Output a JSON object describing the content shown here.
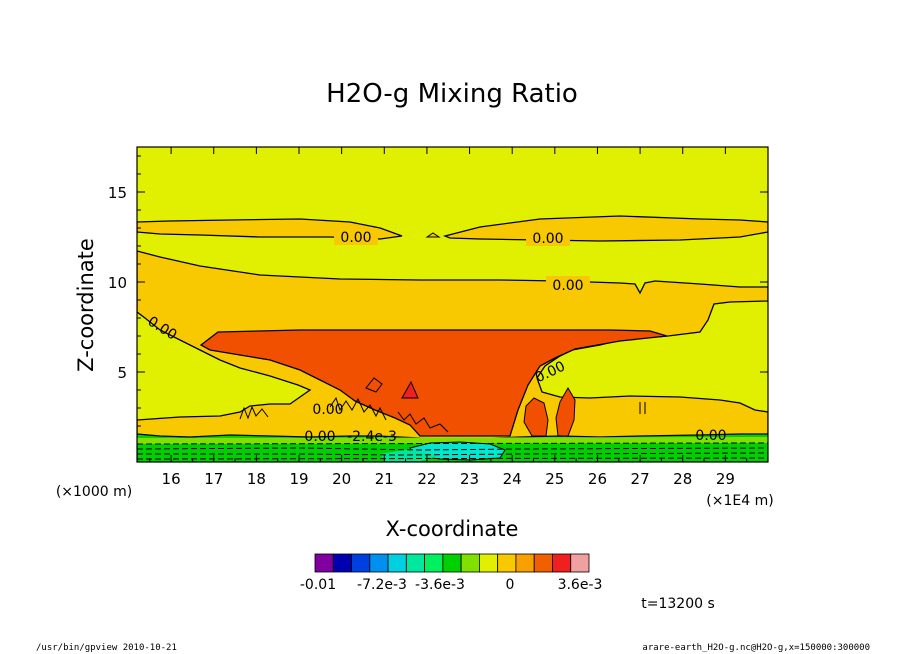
{
  "chart_data": {
    "type": "heatmap",
    "title": "H2O-g Mixing Ratio",
    "xlabel": "X-coordinate",
    "ylabel": "Z-coordinate",
    "x_unit_left": "(×1000 m)",
    "x_unit_right": "(×1E4 m)",
    "xlim": [
      15.2,
      30.0
    ],
    "ylim": [
      0,
      17.5
    ],
    "x_ticks": [
      16,
      17,
      18,
      19,
      20,
      21,
      22,
      23,
      24,
      25,
      26,
      27,
      28,
      29
    ],
    "y_ticks": [
      5,
      10,
      15
    ],
    "contour_label": "0.00",
    "contour_label_low": "-2.4e-3",
    "time_label": "t=13200 s",
    "colorbar": {
      "colors": [
        "#8000a0",
        "#0000b0",
        "#0040e0",
        "#0090f0",
        "#00d0e0",
        "#00e8a0",
        "#00f060",
        "#00d000",
        "#80e000",
        "#e0f000",
        "#f8c800",
        "#f8a000",
        "#f06000",
        "#f02020",
        "#f0a0a0"
      ],
      "labels": [
        "-0.01",
        "-7.2e-3",
        "-3.6e-3",
        "0",
        "3.6e-3"
      ]
    },
    "footer_left": "/usr/bin/gpview   2010-10-21",
    "footer_right": "arare-earth_H2O-g.nc@H2O-g,x=150000:300000"
  }
}
